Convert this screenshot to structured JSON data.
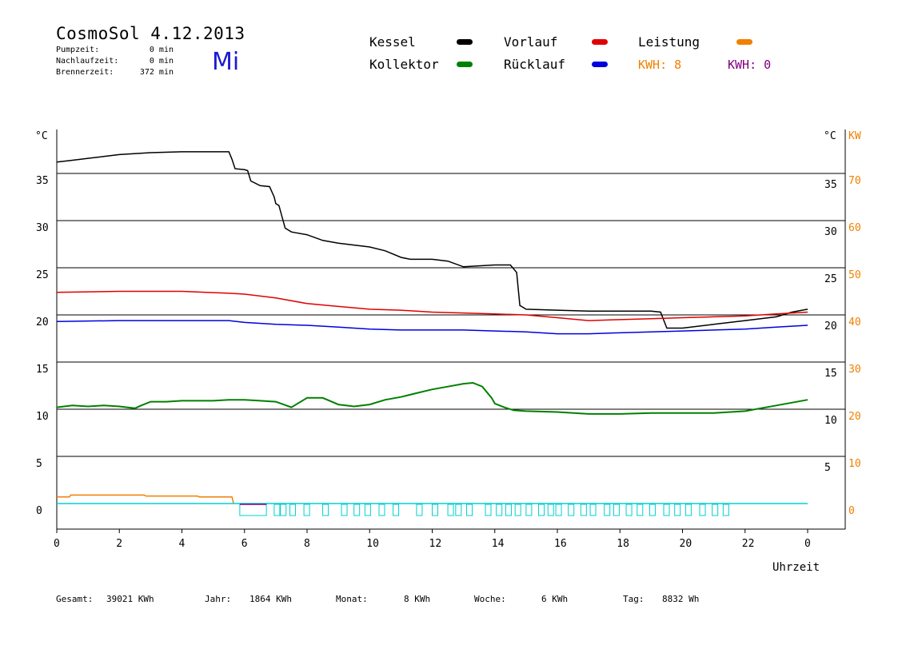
{
  "header": {
    "title": "CosmoSol 4.12.2013",
    "weekday": "Mi",
    "pumpzeit": {
      "label": "Pumpzeit:",
      "value": "0 min"
    },
    "nachlaufzeit": {
      "label": "Nachlaufzeit:",
      "value": "0 min"
    },
    "brennerzeit": {
      "label": "Brennerzeit:",
      "value": "372 min"
    }
  },
  "legend": {
    "kessel": {
      "label": "Kessel",
      "color": "#000000"
    },
    "kollektor": {
      "label": "Kollektor",
      "color": "#008000"
    },
    "vorlauf": {
      "label": "Vorlauf",
      "color": "#e00000"
    },
    "ruecklauf": {
      "label": "Rücklauf",
      "color": "#0000e0"
    },
    "leistung": {
      "label": "Leistung",
      "color": "#f08000"
    },
    "kwh1": {
      "label": "KWH: 8",
      "color": "#f08000"
    },
    "kwh2": {
      "label": "KWH: 0",
      "color": "#800080"
    }
  },
  "footer": {
    "gesamt": {
      "label": "Gesamt:",
      "value": "39021 KWh"
    },
    "jahr": {
      "label": "Jahr:",
      "value": "1864 KWh"
    },
    "monat": {
      "label": "Monat:",
      "value": "8 KWh"
    },
    "woche": {
      "label": "Woche:",
      "value": "6 KWh"
    },
    "tag": {
      "label": "Tag:",
      "value": "8832 Wh"
    }
  },
  "chart_data": {
    "type": "line",
    "xlabel": "Uhrzeit",
    "ylabel_left": "°C",
    "ylabel_right": "°C",
    "ylabel_right2": "KW",
    "x_range": [
      0,
      24
    ],
    "x_ticks": [
      "0",
      "2",
      "4",
      "6",
      "8",
      "10",
      "12",
      "14",
      "16",
      "18",
      "20",
      "22",
      "0"
    ],
    "y_left_ticks": [
      "0",
      "5",
      "10",
      "15",
      "20",
      "25",
      "30",
      "35"
    ],
    "y_right_ticks": [
      "5",
      "10",
      "15",
      "20",
      "25",
      "30",
      "35"
    ],
    "y_right2_ticks": [
      "0",
      "10",
      "20",
      "30",
      "40",
      "50",
      "60",
      "70"
    ],
    "ylim": [
      -3,
      39
    ],
    "grid": true,
    "series": [
      {
        "name": "Kessel",
        "color": "#000000",
        "x": [
          0,
          0.5,
          1,
          1.5,
          2,
          3,
          4,
          5,
          5.5,
          5.6,
          5.7,
          6,
          6.1,
          6.2,
          6.5,
          6.8,
          6.95,
          7,
          7.1,
          7.3,
          7.5,
          8,
          8.5,
          9,
          10,
          10.5,
          11,
          11.3,
          12,
          12.5,
          13,
          14,
          14.5,
          14.7,
          14.8,
          15,
          16,
          17,
          18,
          19,
          19.3,
          19.5,
          20,
          21,
          22,
          23,
          23.5,
          24
        ],
        "y": [
          36.2,
          36.4,
          36.6,
          36.8,
          37,
          37.2,
          37.3,
          37.3,
          37.3,
          36.5,
          35.5,
          35.4,
          35.3,
          34.2,
          33.7,
          33.6,
          32.5,
          31.8,
          31.6,
          29.2,
          28.8,
          28.5,
          27.9,
          27.6,
          27.2,
          26.8,
          26.1,
          25.9,
          25.9,
          25.7,
          25.1,
          25.3,
          25.3,
          24.5,
          21,
          20.6,
          20.5,
          20.4,
          20.4,
          20.4,
          20.3,
          18.6,
          18.6,
          19,
          19.4,
          19.8,
          20.3,
          20.6
        ]
      },
      {
        "name": "Vorlauf",
        "color": "#e00000",
        "x": [
          0,
          2,
          4,
          5.5,
          6,
          7,
          8,
          9,
          10,
          11,
          12,
          13,
          14,
          15,
          16,
          17,
          18,
          19,
          20,
          21,
          22,
          23,
          24
        ],
        "y": [
          22.4,
          22.5,
          22.5,
          22.3,
          22.2,
          21.8,
          21.2,
          20.9,
          20.6,
          20.5,
          20.3,
          20.2,
          20.1,
          20.0,
          19.7,
          19.4,
          19.5,
          19.6,
          19.7,
          19.8,
          19.9,
          20.1,
          20.3
        ]
      },
      {
        "name": "Rücklauf",
        "color": "#0000e0",
        "x": [
          0,
          2,
          4,
          5.5,
          6,
          7,
          8,
          9,
          10,
          11,
          12,
          13,
          14,
          15,
          16,
          17,
          18,
          19,
          20,
          21,
          22,
          23,
          24
        ],
        "y": [
          19.3,
          19.4,
          19.4,
          19.4,
          19.2,
          19.0,
          18.9,
          18.7,
          18.5,
          18.4,
          18.4,
          18.4,
          18.3,
          18.2,
          18.0,
          18.0,
          18.1,
          18.2,
          18.3,
          18.4,
          18.5,
          18.7,
          18.9
        ]
      },
      {
        "name": "Kollektor",
        "color": "#008000",
        "x": [
          0,
          0.5,
          1,
          1.5,
          2,
          2.5,
          2.7,
          3,
          3.5,
          4,
          4.5,
          5,
          5.5,
          6,
          6.5,
          7,
          7.5,
          8,
          8.5,
          9,
          9.5,
          10,
          10.5,
          11,
          11.5,
          12,
          12.5,
          13,
          13.3,
          13.6,
          13.9,
          14,
          14.3,
          14.6,
          15,
          16,
          17,
          18,
          19,
          20,
          21,
          22,
          23,
          24
        ],
        "y": [
          10.2,
          10.4,
          10.3,
          10.4,
          10.3,
          10.1,
          10.4,
          10.8,
          10.8,
          10.9,
          10.9,
          10.9,
          11.0,
          11.0,
          10.9,
          10.8,
          10.2,
          11.2,
          11.2,
          10.5,
          10.3,
          10.5,
          11.0,
          11.3,
          11.7,
          12.1,
          12.4,
          12.7,
          12.8,
          12.4,
          11.2,
          10.6,
          10.2,
          9.9,
          9.8,
          9.7,
          9.5,
          9.5,
          9.6,
          9.6,
          9.6,
          9.8,
          10.4,
          11.0
        ]
      },
      {
        "name": "Leistung",
        "color": "#f08000",
        "x": [
          0,
          0.4,
          0.45,
          2.8,
          2.85,
          4.5,
          4.55,
          5.6,
          5.65
        ],
        "y": [
          0.7,
          0.7,
          0.9,
          0.9,
          0.8,
          0.8,
          0.7,
          0.7,
          0
        ]
      },
      {
        "name": "Pumpe",
        "color": "#00d0d0",
        "x": [
          0,
          24
        ],
        "y": [
          0,
          0
        ]
      }
    ]
  }
}
